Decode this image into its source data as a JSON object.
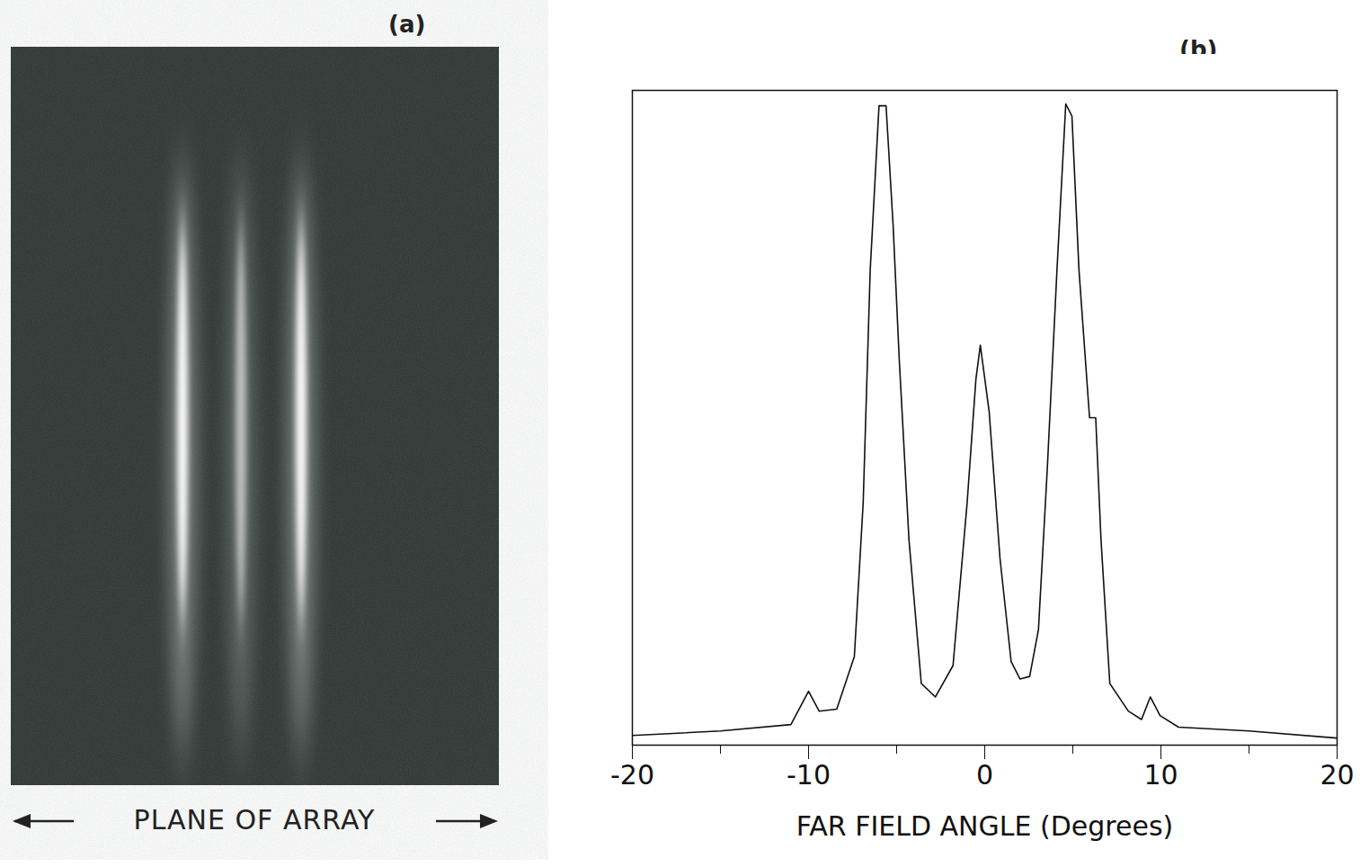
{
  "figure": {
    "panel_a": {
      "label": "(a)",
      "caption": "PLANE OF ARRAY"
    }
  },
  "chart_data": {
    "type": "line",
    "panel_label": "(b)",
    "x_label": "FAR FIELD ANGLE (Degrees)",
    "x": [
      -20,
      -15,
      -11,
      -10,
      -9.4,
      -8.4,
      -7.4,
      -6.9,
      -6.5,
      -6.0,
      -5.6,
      -5.2,
      -4.85,
      -4.3,
      -3.6,
      -2.8,
      -1.8,
      -1.0,
      -0.5,
      -0.25,
      0.25,
      0.87,
      1.5,
      2.0,
      2.55,
      3.05,
      3.55,
      4.1,
      4.6,
      4.95,
      5.35,
      5.95,
      6.3,
      6.6,
      7.1,
      8.15,
      8.9,
      9.4,
      9.95,
      11,
      15,
      20
    ],
    "values": [
      1.5,
      2.2,
      3.2,
      8.4,
      5.3,
      5.6,
      13.8,
      37.7,
      74,
      99.6,
      99.6,
      81,
      60,
      32,
      9.6,
      7.5,
      12.4,
      37.7,
      57,
      62.3,
      52,
      29,
      13,
      10.3,
      10.7,
      18,
      43,
      74,
      99.9,
      98,
      74,
      51,
      51,
      32,
      9.6,
      5.3,
      4,
      7.5,
      4.6,
      2.8,
      2.2,
      1.1
    ],
    "color": "#111111",
    "xlim": [
      -20,
      20
    ],
    "xticks": [
      -20,
      -10,
      0,
      10,
      20
    ],
    "ylim": [
      0,
      102
    ],
    "tick_labels": "x",
    "grid": false
  }
}
